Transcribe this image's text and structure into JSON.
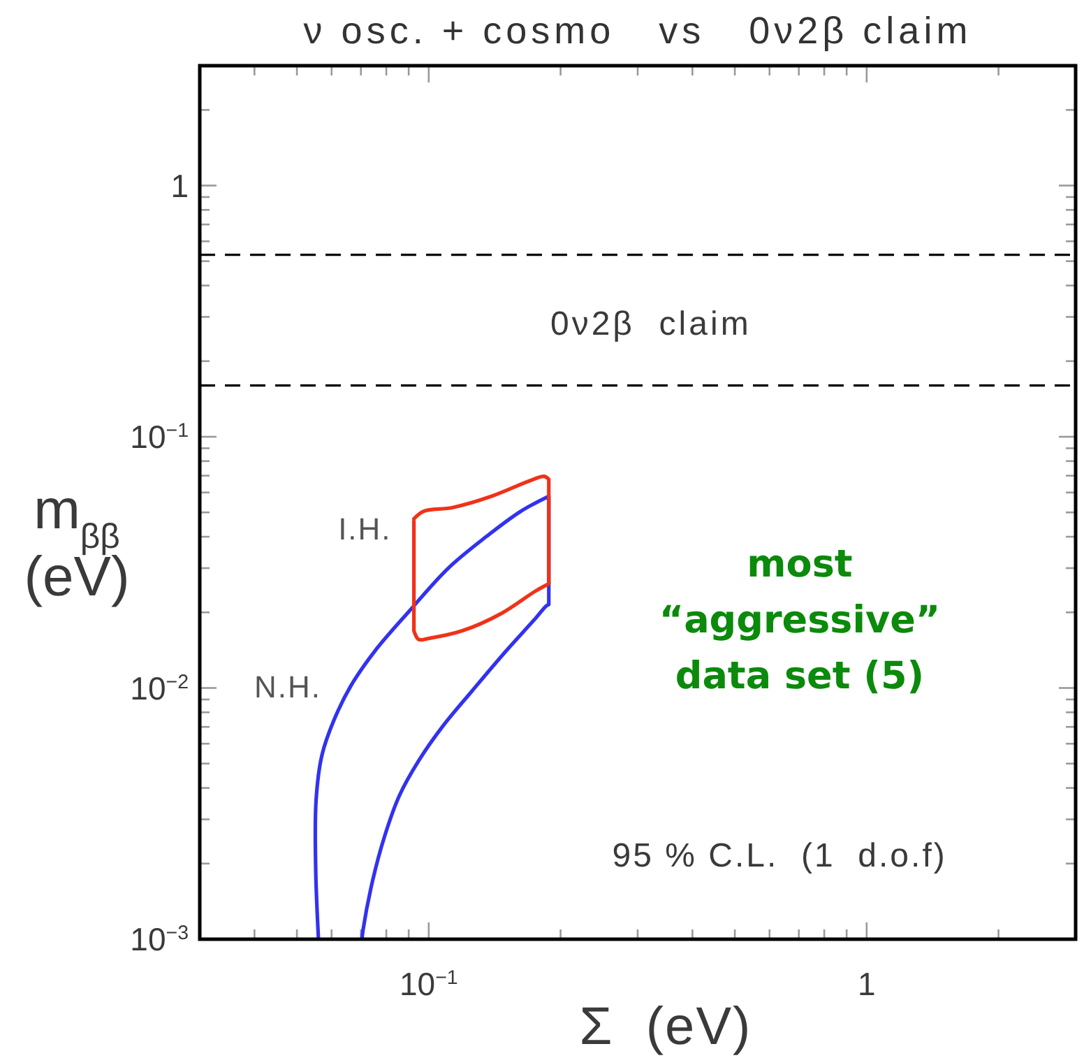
{
  "chart_data": {
    "type": "line",
    "title": "ν osc. + cosmo   vs   0ν2β claim",
    "xlabel": "Σ  (eV)",
    "ylabel": "m$_{ββ}$ (eV)",
    "log": "xy",
    "xlim": [
      0.03,
      3
    ],
    "ylim": [
      0.001,
      3
    ],
    "xticks": [
      {
        "value": 0.04,
        "label": null
      },
      {
        "value": 0.05,
        "label": null
      },
      {
        "value": 0.06,
        "label": null
      },
      {
        "value": 0.07,
        "label": null
      },
      {
        "value": 0.08,
        "label": null
      },
      {
        "value": 0.09,
        "label": null
      },
      {
        "value": 0.1,
        "label": "10$^{−1}$"
      },
      {
        "value": 0.2,
        "label": null
      },
      {
        "value": 0.3,
        "label": null
      },
      {
        "value": 0.4,
        "label": null
      },
      {
        "value": 0.5,
        "label": null
      },
      {
        "value": 0.6,
        "label": null
      },
      {
        "value": 0.7,
        "label": null
      },
      {
        "value": 0.8,
        "label": null
      },
      {
        "value": 0.9,
        "label": null
      },
      {
        "value": 1,
        "label": "1"
      },
      {
        "value": 2,
        "label": null
      }
    ],
    "yticks": [
      {
        "value": 0.001,
        "label": "10$^{−3}$"
      },
      {
        "value": 0.002,
        "label": null
      },
      {
        "value": 0.003,
        "label": null
      },
      {
        "value": 0.004,
        "label": null
      },
      {
        "value": 0.005,
        "label": null
      },
      {
        "value": 0.006,
        "label": null
      },
      {
        "value": 0.007,
        "label": null
      },
      {
        "value": 0.008,
        "label": null
      },
      {
        "value": 0.009,
        "label": null
      },
      {
        "value": 0.01,
        "label": "10$^{−2}$"
      },
      {
        "value": 0.02,
        "label": null
      },
      {
        "value": 0.03,
        "label": null
      },
      {
        "value": 0.04,
        "label": null
      },
      {
        "value": 0.05,
        "label": null
      },
      {
        "value": 0.06,
        "label": null
      },
      {
        "value": 0.07,
        "label": null
      },
      {
        "value": 0.08,
        "label": null
      },
      {
        "value": 0.09,
        "label": null
      },
      {
        "value": 0.1,
        "label": "10$^{−1}$"
      },
      {
        "value": 0.2,
        "label": null
      },
      {
        "value": 0.3,
        "label": null
      },
      {
        "value": 0.4,
        "label": null
      },
      {
        "value": 0.5,
        "label": null
      },
      {
        "value": 0.6,
        "label": null
      },
      {
        "value": 0.7,
        "label": null
      },
      {
        "value": 0.8,
        "label": null
      },
      {
        "value": 0.9,
        "label": null
      },
      {
        "value": 1,
        "label": "1"
      },
      {
        "value": 2,
        "label": null
      }
    ],
    "grid": false,
    "legend": false,
    "marker": "none",
    "line_style": "solid",
    "series": [
      {
        "name": "N.H.",
        "color": "#3232f0",
        "x": [
          0.056,
          0.0552,
          0.0553,
          0.057,
          0.0607,
          0.0664,
          0.0754,
          0.0902,
          0.1106,
          0.1357,
          0.1622,
          0.188,
          0.188,
          0.1854,
          0.1752,
          0.1503,
          0.1257,
          0.1079,
          0.0949,
          0.0857,
          0.0794,
          0.0745,
          0.0708,
          0.0704
        ],
        "values": [
          0.001,
          0.00188,
          0.00357,
          0.00538,
          0.00742,
          0.0102,
          0.01406,
          0.0202,
          0.0299,
          0.0402,
          0.0505,
          0.058,
          0.0215,
          0.0212,
          0.0189,
          0.01406,
          0.00975,
          0.00708,
          0.00514,
          0.00373,
          0.00259,
          0.00172,
          0.00109,
          0.001
        ]
      },
      {
        "name": "I.H.",
        "color": "#f03218",
        "x": [
          0.0925,
          0.0974,
          0.1135,
          0.1393,
          0.1708,
          0.1835,
          0.188,
          0.188,
          0.1752,
          0.1465,
          0.1194,
          0.0999,
          0.0949,
          0.0925,
          0.0925
        ],
        "values": [
          0.0471,
          0.0505,
          0.0523,
          0.058,
          0.067,
          0.0696,
          0.0677,
          0.026,
          0.0243,
          0.0198,
          0.0169,
          0.01575,
          0.0156,
          0.0169,
          0.0461
        ]
      }
    ],
    "ref_lines": [
      {
        "axis": "y",
        "value": 0.53,
        "label": null,
        "color": "#000000",
        "line_style": "dashed"
      },
      {
        "axis": "y",
        "value": 0.16,
        "label": null,
        "color": "#000000",
        "line_style": "dashed"
      }
    ],
    "annotations": [
      "0ν2β  claim",
      "most “aggressive” data set (5)",
      "95 % C.L.  (1  d.o.f)"
    ]
  }
}
